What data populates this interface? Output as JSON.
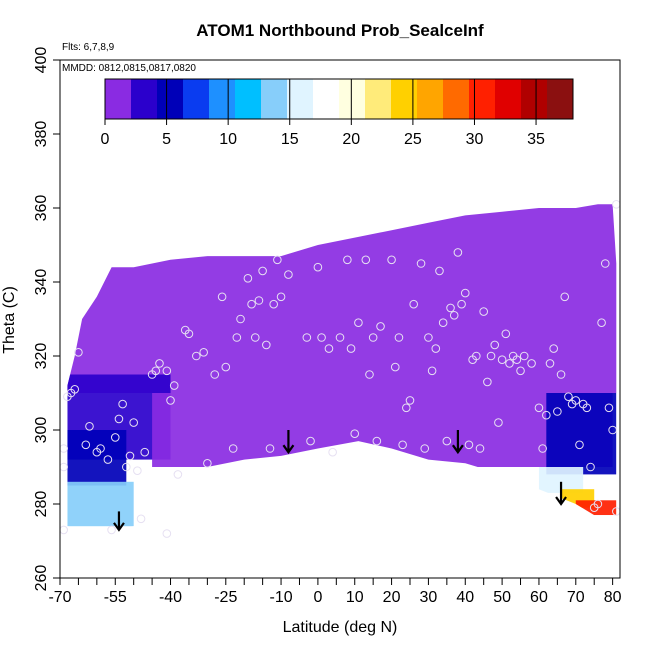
{
  "chart_data": {
    "type": "heatmap",
    "title": "ATOM1 Northbound Prob_SealceInf",
    "annotations": [
      "Flts: 6,7,8,9",
      "MMDD: 0812,0815,0817,0820"
    ],
    "xlabel": "Latitude (deg N)",
    "ylabel": "Theta (C)",
    "xlim": [
      -70,
      82
    ],
    "ylim": [
      260,
      400
    ],
    "x_ticks": [
      "-70",
      "-55",
      "-40",
      "-25",
      "-10",
      "0",
      "10",
      "20",
      "30",
      "40",
      "50",
      "60",
      "70",
      "80"
    ],
    "x_tick_values": [
      -70,
      -55,
      -40,
      -25,
      -10,
      0,
      10,
      20,
      30,
      40,
      50,
      60,
      70,
      80
    ],
    "x_minor_ticks": [
      -65,
      -60,
      -50,
      -45,
      -35,
      -30,
      -20,
      -15,
      -5,
      5,
      15,
      25,
      35,
      45,
      55,
      65,
      75
    ],
    "y_ticks": [
      "260",
      "280",
      "300",
      "320",
      "340",
      "360",
      "380",
      "400"
    ],
    "y_tick_values": [
      260,
      280,
      300,
      320,
      340,
      360,
      380,
      400
    ],
    "colorbar": {
      "range": [
        0,
        38
      ],
      "ticks": [
        "0",
        "5",
        "10",
        "15",
        "20",
        "25",
        "30",
        "35"
      ],
      "tick_values": [
        0,
        5,
        10,
        15,
        20,
        25,
        30,
        35
      ],
      "colors": [
        "#8a2be2",
        "#2b00cc",
        "#0000b8",
        "#0a3cf0",
        "#1e90ff",
        "#00bfff",
        "#87cefa",
        "#e0f4ff",
        "#ffffff",
        "#ffffe0",
        "#ffeb7a",
        "#ffd000",
        "#ffa500",
        "#ff6a00",
        "#ff2000",
        "#e00000",
        "#b00000",
        "#8b1010"
      ]
    },
    "upper_boundary": [
      [
        -56,
        344
      ],
      [
        -50,
        344
      ],
      [
        -40,
        346
      ],
      [
        -30,
        347
      ],
      [
        -20,
        347
      ],
      [
        -10,
        347
      ],
      [
        0,
        350
      ],
      [
        10,
        352
      ],
      [
        20,
        354
      ],
      [
        30,
        356
      ],
      [
        40,
        358
      ],
      [
        50,
        359
      ],
      [
        60,
        360
      ],
      [
        70,
        360
      ],
      [
        76,
        361
      ],
      [
        80,
        361
      ],
      [
        81,
        345
      ],
      [
        81,
        320
      ],
      [
        81,
        300
      ],
      [
        81,
        277
      ]
    ],
    "left_boundary": [
      [
        -68,
        274
      ],
      [
        -68,
        300
      ],
      [
        -68,
        312
      ],
      [
        -66,
        320
      ],
      [
        -64,
        330
      ],
      [
        -60,
        336
      ],
      [
        -56,
        344
      ]
    ],
    "lower_boundary": [
      [
        -68,
        274
      ],
      [
        -60,
        273
      ],
      [
        -50,
        274
      ],
      [
        -45,
        276
      ],
      [
        -38,
        286
      ],
      [
        -30,
        290
      ],
      [
        -20,
        292
      ],
      [
        -10,
        293
      ],
      [
        0,
        295
      ],
      [
        11,
        297
      ],
      [
        20,
        295
      ],
      [
        30,
        292
      ],
      [
        40,
        291
      ],
      [
        50,
        288
      ],
      [
        60,
        284
      ],
      [
        70,
        280
      ],
      [
        75,
        277
      ],
      [
        81,
        277
      ]
    ],
    "field_zones": [
      {
        "lat": [
          -70,
          82
        ],
        "theta": [
          310,
          400
        ],
        "value": 0
      },
      {
        "lat": [
          -68,
          -40
        ],
        "theta": [
          292,
          315
        ],
        "value": 3
      },
      {
        "lat": [
          -68,
          -52
        ],
        "theta": [
          285,
          300
        ],
        "value": 6
      },
      {
        "lat": [
          -68,
          -50
        ],
        "theta": [
          274,
          286
        ],
        "value": 13
      },
      {
        "lat": [
          -45,
          80
        ],
        "theta": [
          290,
          310
        ],
        "value": 2
      },
      {
        "lat": [
          62,
          81
        ],
        "theta": [
          288,
          310
        ],
        "value": 5
      },
      {
        "lat": [
          60,
          72
        ],
        "theta": [
          283,
          290
        ],
        "value": 15
      },
      {
        "lat": [
          66,
          75
        ],
        "theta": [
          279,
          284
        ],
        "value": 24
      },
      {
        "lat": [
          70,
          81
        ],
        "theta": [
          277,
          281
        ],
        "value": 30
      }
    ],
    "flights_arrows": [
      {
        "lat": -54,
        "theta_top": 278,
        "theta_bottom": 273
      },
      {
        "lat": -8,
        "theta_top": 300,
        "theta_bottom": 294
      },
      {
        "lat": 38,
        "theta_top": 300,
        "theta_bottom": 294
      },
      {
        "lat": 66,
        "theta_top": 286,
        "theta_bottom": 280
      }
    ],
    "points": [
      [
        -69,
        290
      ],
      [
        -69,
        295
      ],
      [
        -68,
        309
      ],
      [
        -67,
        310
      ],
      [
        -66,
        311
      ],
      [
        -65,
        321
      ],
      [
        -63,
        296
      ],
      [
        -62,
        301
      ],
      [
        -60,
        294
      ],
      [
        -59,
        295
      ],
      [
        -57,
        292
      ],
      [
        -55,
        298
      ],
      [
        -54,
        303
      ],
      [
        -53,
        307
      ],
      [
        -52,
        290
      ],
      [
        -51,
        293
      ],
      [
        -50,
        302
      ],
      [
        -49,
        289
      ],
      [
        -48,
        276
      ],
      [
        -47,
        294
      ],
      [
        -45,
        315
      ],
      [
        -44,
        316
      ],
      [
        -43,
        318
      ],
      [
        -41,
        316
      ],
      [
        -40,
        308
      ],
      [
        -39,
        312
      ],
      [
        -38,
        288
      ],
      [
        -36,
        327
      ],
      [
        -35,
        326
      ],
      [
        -33,
        320
      ],
      [
        -31,
        321
      ],
      [
        -30,
        291
      ],
      [
        -28,
        315
      ],
      [
        -26,
        336
      ],
      [
        -25,
        317
      ],
      [
        -23,
        295
      ],
      [
        -22,
        325
      ],
      [
        -21,
        330
      ],
      [
        -19,
        341
      ],
      [
        -18,
        334
      ],
      [
        -17,
        325
      ],
      [
        -16,
        335
      ],
      [
        -15,
        343
      ],
      [
        -14,
        323
      ],
      [
        -13,
        295
      ],
      [
        -12,
        334
      ],
      [
        -11,
        346
      ],
      [
        -10,
        336
      ],
      [
        -8,
        342
      ],
      [
        -3,
        325
      ],
      [
        -2,
        297
      ],
      [
        0,
        344
      ],
      [
        1,
        325
      ],
      [
        3,
        322
      ],
      [
        4,
        294
      ],
      [
        6,
        325
      ],
      [
        8,
        346
      ],
      [
        9,
        322
      ],
      [
        10,
        299
      ],
      [
        11,
        329
      ],
      [
        13,
        346
      ],
      [
        14,
        315
      ],
      [
        15,
        325
      ],
      [
        16,
        297
      ],
      [
        17,
        328
      ],
      [
        20,
        346
      ],
      [
        21,
        317
      ],
      [
        22,
        325
      ],
      [
        23,
        296
      ],
      [
        24,
        306
      ],
      [
        25,
        308
      ],
      [
        26,
        334
      ],
      [
        28,
        345
      ],
      [
        29,
        295
      ],
      [
        30,
        325
      ],
      [
        31,
        316
      ],
      [
        32,
        322
      ],
      [
        33,
        343
      ],
      [
        34,
        329
      ],
      [
        35,
        297
      ],
      [
        36,
        333
      ],
      [
        37,
        331
      ],
      [
        38,
        348
      ],
      [
        39,
        334
      ],
      [
        40,
        337
      ],
      [
        41,
        296
      ],
      [
        42,
        319
      ],
      [
        43,
        320
      ],
      [
        44,
        295
      ],
      [
        45,
        332
      ],
      [
        46,
        313
      ],
      [
        47,
        320
      ],
      [
        48,
        323
      ],
      [
        49,
        302
      ],
      [
        50,
        319
      ],
      [
        51,
        326
      ],
      [
        52,
        318
      ],
      [
        53,
        320
      ],
      [
        54,
        319
      ],
      [
        55,
        316
      ],
      [
        56,
        320
      ],
      [
        58,
        318
      ],
      [
        60,
        306
      ],
      [
        61,
        295
      ],
      [
        62,
        304
      ],
      [
        63,
        318
      ],
      [
        64,
        322
      ],
      [
        65,
        305
      ],
      [
        66,
        315
      ],
      [
        67,
        336
      ],
      [
        68,
        309
      ],
      [
        69,
        307
      ],
      [
        70,
        308
      ],
      [
        71,
        296
      ],
      [
        72,
        307
      ],
      [
        73,
        306
      ],
      [
        74,
        290
      ],
      [
        75,
        279
      ],
      [
        76,
        280
      ],
      [
        77,
        329
      ],
      [
        78,
        345
      ],
      [
        79,
        306
      ],
      [
        80,
        300
      ],
      [
        81,
        361
      ],
      [
        81,
        278
      ],
      [
        -69,
        273
      ],
      [
        -56,
        273
      ],
      [
        -41,
        272
      ]
    ]
  }
}
